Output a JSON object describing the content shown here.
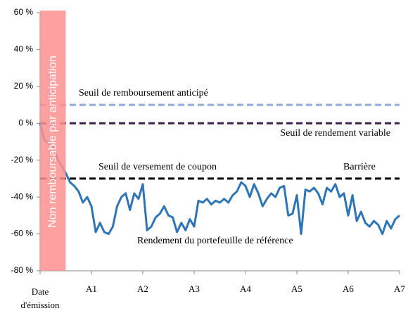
{
  "chart_data": {
    "type": "line",
    "x": [
      0,
      1,
      2,
      3,
      4,
      5,
      6,
      7,
      8,
      9,
      10,
      11,
      12,
      13,
      14,
      15,
      16,
      17,
      18,
      19,
      20,
      21,
      22,
      23,
      24,
      25,
      26,
      27,
      28,
      29,
      30,
      31,
      32,
      33,
      34,
      35,
      36,
      37,
      38,
      39,
      40,
      41,
      42,
      43,
      44,
      45,
      46,
      47,
      48,
      49,
      50,
      51,
      52,
      53,
      54,
      55,
      56,
      57,
      58,
      59,
      60,
      61,
      62,
      63,
      64,
      65,
      66,
      67,
      68,
      69,
      70,
      71,
      72,
      73,
      74,
      75,
      76,
      77,
      78,
      79,
      80,
      81,
      82,
      83,
      84
    ],
    "series": [
      {
        "name": "Rendement du portefeuille de référence",
        "color": "#2e75b6",
        "values": [
          0,
          -9,
          -11,
          -12,
          -19,
          -23,
          -27,
          -32,
          -34,
          -37,
          -43,
          -40,
          -45,
          -59,
          -54,
          -59,
          -60,
          -56,
          -45,
          -40,
          -38,
          -47,
          -38,
          -41,
          -33,
          -58,
          -56,
          -51,
          -49,
          -45,
          -50,
          -51,
          -59,
          -54,
          -58,
          -52,
          -56,
          -42,
          -43,
          -41,
          -44,
          -42,
          -43,
          -41,
          -43,
          -39,
          -37,
          -32,
          -34,
          -40,
          -33,
          -38,
          -45,
          -41,
          -38,
          -40,
          -35,
          -34,
          -50,
          -49,
          -39,
          -60,
          -36,
          -37,
          -35,
          -38,
          -44,
          -35,
          -37,
          -33,
          -40,
          -38,
          -50,
          -39,
          -53,
          -48,
          -54,
          -56,
          -53,
          -55,
          -60,
          -53,
          -57,
          -52,
          -50
        ]
      }
    ],
    "xlim": [
      0,
      84
    ],
    "xticks": [
      {
        "value": 0,
        "label": "Date d'émission"
      },
      {
        "value": 12,
        "label": "A1"
      },
      {
        "value": 24,
        "label": "A2"
      },
      {
        "value": 36,
        "label": "A3"
      },
      {
        "value": 48,
        "label": "A4"
      },
      {
        "value": 60,
        "label": "A5"
      },
      {
        "value": 72,
        "label": "A6"
      },
      {
        "value": 84,
        "label": "A7"
      }
    ],
    "ylim": [
      -80,
      60
    ],
    "yticks": [
      {
        "value": -80,
        "label": "-80 %"
      },
      {
        "value": -60,
        "label": "-60 %"
      },
      {
        "value": -40,
        "label": "-40 %"
      },
      {
        "value": -20,
        "label": "-20 %"
      },
      {
        "value": 0,
        "label": "0 %"
      },
      {
        "value": 20,
        "label": "20 %"
      },
      {
        "value": 40,
        "label": "40 %"
      },
      {
        "value": 60,
        "label": "60 %"
      }
    ],
    "thresholds": [
      {
        "value": 10,
        "color": "#8eaadb",
        "labels": [
          "Seuil de remboursement anticipé"
        ]
      },
      {
        "value": 0,
        "color": "#3b2147",
        "labels": [
          "Seuil de rendement variable"
        ]
      },
      {
        "value": -30,
        "color": "#000000",
        "labels": [
          "Seuil de versement de coupon",
          "Barrière"
        ]
      }
    ],
    "shaded_region": {
      "xlim": [
        0,
        6
      ],
      "color": "#ff8f8f",
      "label": "Non remboursable par anticipation"
    }
  }
}
